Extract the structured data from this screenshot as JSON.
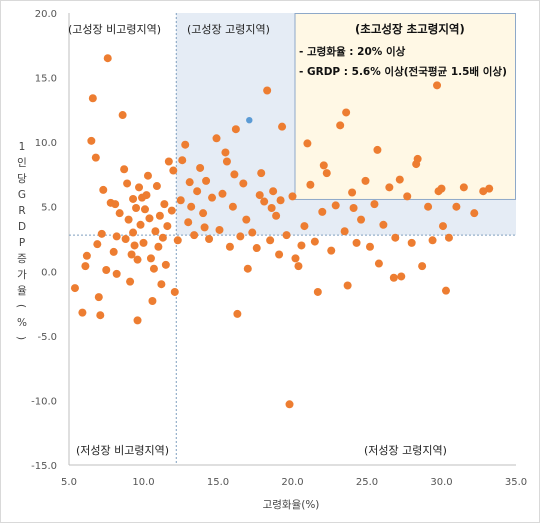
{
  "chart_data": {
    "type": "scatter",
    "xlabel": "고령화율(%)",
    "ylabel": "1인당GRDP증가율(%)",
    "xlim": [
      5.0,
      35.0
    ],
    "ylim": [
      -15.0,
      20.0
    ],
    "x_ticks": [
      "5.0",
      "10.0",
      "15.0",
      "20.0",
      "25.0",
      "30.0",
      "35.0"
    ],
    "y_ticks": [
      "20.0",
      "15.0",
      "10.0",
      "5.0",
      "0.0",
      "-5.0",
      "-10.0",
      "-15.0"
    ],
    "x_tick_values": [
      5,
      10,
      15,
      20,
      25,
      30,
      35
    ],
    "y_tick_values": [
      20,
      15,
      10,
      5,
      0,
      -5,
      -10,
      -15
    ],
    "grid": false,
    "reference_lines": {
      "x": 12.2,
      "y": 2.8
    },
    "quadrants": {
      "top_left": "(고성장 비고령지역)",
      "top_middle": "(고성장 고령지역)",
      "bottom_left": "(저성장 비고령지역)",
      "bottom_right": "(저성장 고령지역)"
    },
    "legend_box": {
      "title": "(초고성장 초고령지역)",
      "lines": [
        "- 고령화율 : 20% 이상",
        "- GRDP : 5.6% 이상(전국평균 1.5배 이상)"
      ]
    },
    "colors": {
      "point": "#ED7D31",
      "highlight_point": "#5B9BD5",
      "region_fill": "#DCE6F1",
      "legend_fill": "#FFF8E5",
      "legend_border": "#8EA9C9",
      "reference_line": "#7F9FBF",
      "axis": "#BFBFBF"
    },
    "highlight": {
      "x": 17.1,
      "y": 11.7
    },
    "points": [
      [
        5.4,
        -1.3
      ],
      [
        5.9,
        -3.2
      ],
      [
        6.1,
        0.4
      ],
      [
        6.2,
        1.2
      ],
      [
        6.5,
        10.1
      ],
      [
        6.6,
        13.4
      ],
      [
        6.8,
        8.8
      ],
      [
        6.9,
        2.1
      ],
      [
        7.0,
        -2.0
      ],
      [
        7.1,
        -3.4
      ],
      [
        7.3,
        6.3
      ],
      [
        7.5,
        0.1
      ],
      [
        7.6,
        16.5
      ],
      [
        7.8,
        5.3
      ],
      [
        8.0,
        1.5
      ],
      [
        8.1,
        5.2
      ],
      [
        8.2,
        2.7
      ],
      [
        8.4,
        4.5
      ],
      [
        8.6,
        12.1
      ],
      [
        8.7,
        7.9
      ],
      [
        8.8,
        2.5
      ],
      [
        8.9,
        6.8
      ],
      [
        9.0,
        4.0
      ],
      [
        9.1,
        -0.8
      ],
      [
        9.2,
        1.3
      ],
      [
        9.3,
        3.0
      ],
      [
        9.4,
        2.0
      ],
      [
        9.5,
        4.9
      ],
      [
        9.6,
        0.9
      ],
      [
        9.6,
        -3.8
      ],
      [
        9.7,
        6.5
      ],
      [
        9.8,
        3.6
      ],
      [
        9.9,
        5.7
      ],
      [
        10.0,
        2.2
      ],
      [
        10.1,
        4.8
      ],
      [
        10.2,
        5.9
      ],
      [
        10.3,
        7.4
      ],
      [
        10.4,
        4.1
      ],
      [
        10.5,
        1.0
      ],
      [
        10.6,
        -2.3
      ],
      [
        10.7,
        0.2
      ],
      [
        10.8,
        3.1
      ],
      [
        10.9,
        6.6
      ],
      [
        11.0,
        1.9
      ],
      [
        11.1,
        4.3
      ],
      [
        11.2,
        -1.0
      ],
      [
        11.3,
        2.6
      ],
      [
        11.5,
        0.5
      ],
      [
        11.6,
        3.5
      ],
      [
        11.7,
        8.5
      ],
      [
        11.9,
        4.7
      ],
      [
        12.0,
        7.8
      ],
      [
        12.1,
        -1.6
      ],
      [
        12.3,
        2.4
      ],
      [
        12.5,
        5.5
      ],
      [
        12.6,
        8.6
      ],
      [
        12.8,
        9.8
      ],
      [
        13.0,
        3.8
      ],
      [
        13.2,
        5.0
      ],
      [
        13.4,
        2.8
      ],
      [
        13.6,
        6.2
      ],
      [
        13.8,
        8.0
      ],
      [
        14.0,
        4.5
      ],
      [
        14.2,
        7.0
      ],
      [
        14.4,
        2.5
      ],
      [
        14.6,
        5.7
      ],
      [
        14.9,
        10.3
      ],
      [
        15.1,
        3.2
      ],
      [
        15.3,
        6.0
      ],
      [
        15.5,
        9.2
      ],
      [
        15.8,
        1.9
      ],
      [
        16.0,
        5.0
      ],
      [
        16.2,
        11.0
      ],
      [
        16.3,
        -3.3
      ],
      [
        16.5,
        2.7
      ],
      [
        16.7,
        6.8
      ],
      [
        16.9,
        4.0
      ],
      [
        17.0,
        0.2
      ],
      [
        17.3,
        3.0
      ],
      [
        17.6,
        1.8
      ],
      [
        17.9,
        7.6
      ],
      [
        18.1,
        5.4
      ],
      [
        18.3,
        14.0
      ],
      [
        18.5,
        2.4
      ],
      [
        18.7,
        6.2
      ],
      [
        18.9,
        4.3
      ],
      [
        19.1,
        1.3
      ],
      [
        19.3,
        11.2
      ],
      [
        19.6,
        2.8
      ],
      [
        19.8,
        -10.3
      ],
      [
        20.0,
        5.8
      ],
      [
        20.2,
        1.0
      ],
      [
        20.4,
        0.4
      ],
      [
        20.8,
        3.5
      ],
      [
        21.2,
        6.7
      ],
      [
        21.5,
        2.3
      ],
      [
        21.7,
        -1.6
      ],
      [
        22.0,
        4.6
      ],
      [
        22.3,
        7.6
      ],
      [
        22.6,
        1.6
      ],
      [
        22.9,
        5.1
      ],
      [
        23.2,
        11.3
      ],
      [
        23.5,
        3.1
      ],
      [
        23.7,
        -1.1
      ],
      [
        24.0,
        6.1
      ],
      [
        24.3,
        2.2
      ],
      [
        24.6,
        4.0
      ],
      [
        24.9,
        7.0
      ],
      [
        25.2,
        1.9
      ],
      [
        25.5,
        5.2
      ],
      [
        25.8,
        0.6
      ],
      [
        26.1,
        3.6
      ],
      [
        26.5,
        6.5
      ],
      [
        26.9,
        2.6
      ],
      [
        27.3,
        -0.4
      ],
      [
        27.7,
        5.8
      ],
      [
        28.0,
        2.2
      ],
      [
        28.4,
        8.7
      ],
      [
        28.7,
        0.4
      ],
      [
        29.1,
        5.0
      ],
      [
        29.4,
        2.4
      ],
      [
        29.8,
        6.2
      ],
      [
        30.1,
        3.5
      ],
      [
        30.3,
        -1.5
      ],
      [
        30.5,
        2.6
      ],
      [
        31.0,
        5.0
      ],
      [
        31.5,
        6.5
      ],
      [
        32.2,
        4.5
      ],
      [
        32.8,
        6.2
      ],
      [
        33.2,
        6.4
      ],
      [
        26.8,
        -0.5
      ],
      [
        22.1,
        8.2
      ],
      [
        27.2,
        7.1
      ],
      [
        18.6,
        4.9
      ],
      [
        15.6,
        8.5
      ],
      [
        13.1,
        6.9
      ],
      [
        11.4,
        5.2
      ],
      [
        9.3,
        5.6
      ],
      [
        8.2,
        -0.2
      ],
      [
        7.2,
        2.9
      ],
      [
        24.1,
        4.9
      ],
      [
        20.6,
        2.0
      ],
      [
        17.8,
        5.9
      ],
      [
        29.7,
        14.4
      ],
      [
        23.6,
        12.3
      ],
      [
        21.0,
        9.9
      ],
      [
        25.7,
        9.4
      ],
      [
        28.3,
        8.3
      ],
      [
        30.0,
        6.4
      ],
      [
        19.2,
        5.5
      ],
      [
        16.1,
        7.5
      ],
      [
        14.1,
        3.4
      ]
    ]
  }
}
